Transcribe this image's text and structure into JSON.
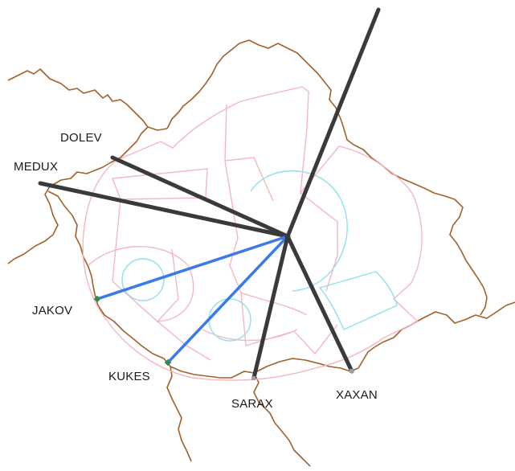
{
  "map": {
    "colors": {
      "border": "#a0622a",
      "sector": "#f4b6c2",
      "arc": "#8fe0ec",
      "route_exit": "#3a3a3a",
      "route_entry": "#3a7be6",
      "fix_marker": "#2e8b57"
    },
    "waypoints": [
      {
        "id": "dolev",
        "label": "DOLEV",
        "route": "exit"
      },
      {
        "id": "medux",
        "label": "MEDUX",
        "route": "exit"
      },
      {
        "id": "jakov",
        "label": "JAKOV",
        "route": "entry"
      },
      {
        "id": "kukes",
        "label": "KUKES",
        "route": "entry"
      },
      {
        "id": "sarax",
        "label": "SARAX",
        "route": "exit"
      },
      {
        "id": "xaxan",
        "label": "XAXAN",
        "route": "exit"
      },
      {
        "id": "north",
        "label": "",
        "route": "exit"
      }
    ]
  }
}
